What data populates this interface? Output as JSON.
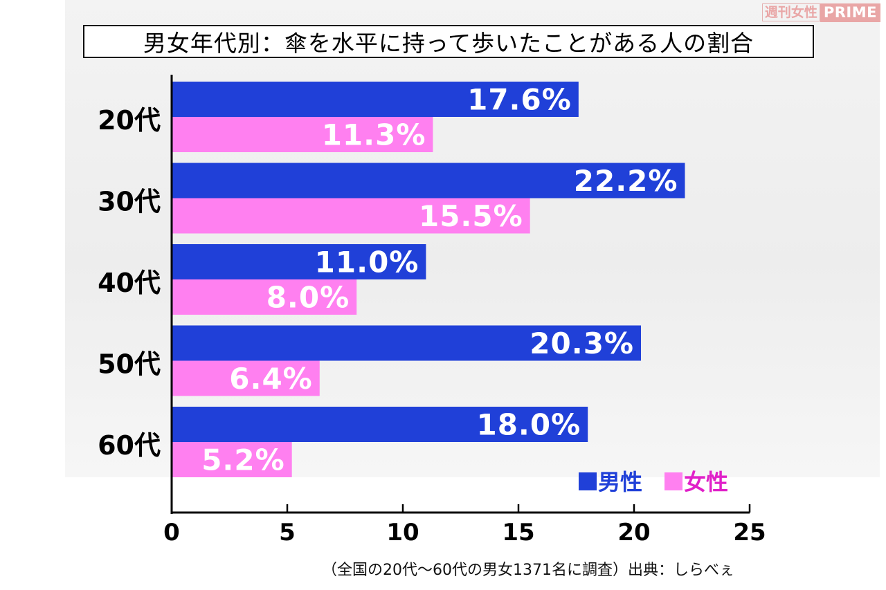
{
  "watermark": {
    "brand_jp": "週刊女性",
    "brand_en": "PRIME"
  },
  "source_note": "（全国の20代〜60代の男女1371名に調査）出典：しらべぇ",
  "chart_data": {
    "type": "bar",
    "orientation": "horizontal",
    "title": "男女年代別：傘を水平に持って歩いたことがある人の割合",
    "categories": [
      "20代",
      "30代",
      "40代",
      "50代",
      "60代"
    ],
    "series": [
      {
        "name": "男性",
        "color": "#2040d8",
        "values": [
          17.6,
          22.2,
          11.0,
          20.3,
          18.0
        ],
        "labels": [
          "17.6%",
          "22.2%",
          "11.0%",
          "20.3%",
          "18.0%"
        ]
      },
      {
        "name": "女性",
        "color": "#ff80f0",
        "values": [
          11.3,
          15.5,
          8.0,
          6.4,
          5.2
        ],
        "labels": [
          "11.3%",
          "15.5%",
          "8.0%",
          "6.4%",
          "5.2%"
        ]
      }
    ],
    "xlim": [
      0,
      25
    ],
    "xticks": [
      "0",
      "5",
      "10",
      "15",
      "20",
      "25"
    ],
    "legend_position": "bottom-right",
    "grid": false
  }
}
